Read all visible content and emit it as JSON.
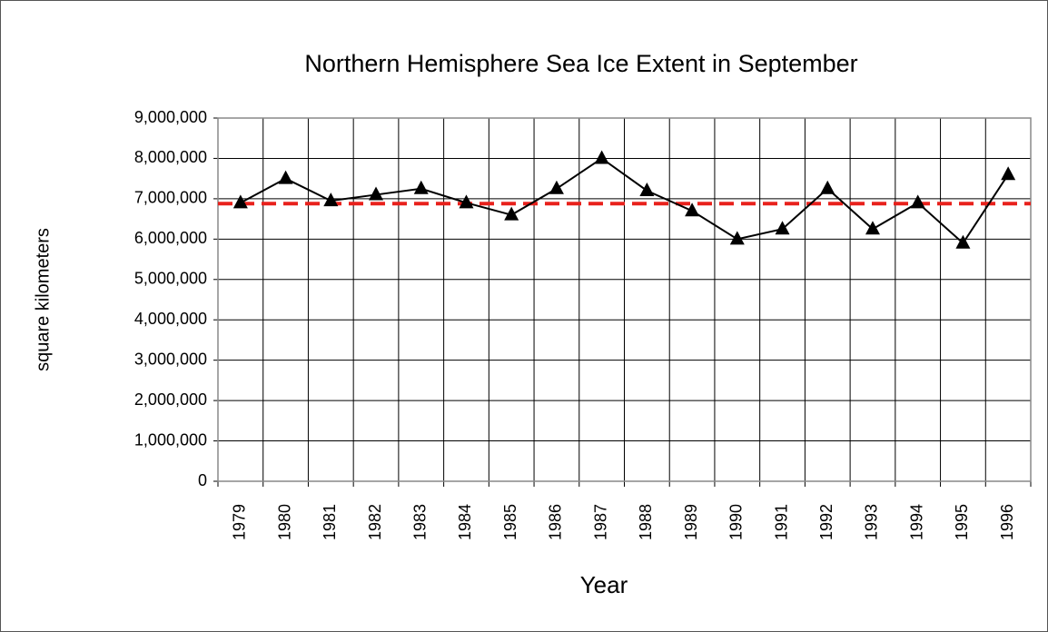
{
  "chart_data": {
    "type": "line",
    "title": "Northern Hemisphere Sea Ice Extent in September",
    "x_label": "Year",
    "y_label": "square kilometers",
    "categories": [
      "1979",
      "1980",
      "1981",
      "1982",
      "1983",
      "1984",
      "1985",
      "1986",
      "1987",
      "1988",
      "1989",
      "1990",
      "1991",
      "1992",
      "1993",
      "1994",
      "1995",
      "1996"
    ],
    "series": [
      {
        "color": "#000000",
        "values": [
          6900000,
          7500000,
          6950000,
          7100000,
          7250000,
          6900000,
          6600000,
          7250000,
          8000000,
          7200000,
          6700000,
          6000000,
          6250000,
          7250000,
          6250000,
          6900000,
          5900000,
          7600000
        ]
      }
    ],
    "reference_line": {
      "value": 6880000,
      "color": "#e8211c"
    },
    "ylim": [
      0,
      9000000
    ],
    "yticks": [
      0,
      {
        "value": 1000000,
        "label": "1,000,000"
      },
      {
        "value": 2000000,
        "label": "2,000,000"
      },
      {
        "value": 3000000,
        "label": "3,000,000"
      },
      {
        "value": 4000000,
        "label": "4,000,000"
      },
      {
        "value": 5000000,
        "label": "5,000,000"
      },
      {
        "value": 6000000,
        "label": "6,000,000"
      },
      {
        "value": 7000000,
        "label": "7,000,000"
      },
      {
        "value": 8000000,
        "label": "8,000,000"
      },
      {
        "value": 9000000,
        "label": "9,000,000"
      }
    ],
    "grid": true
  }
}
